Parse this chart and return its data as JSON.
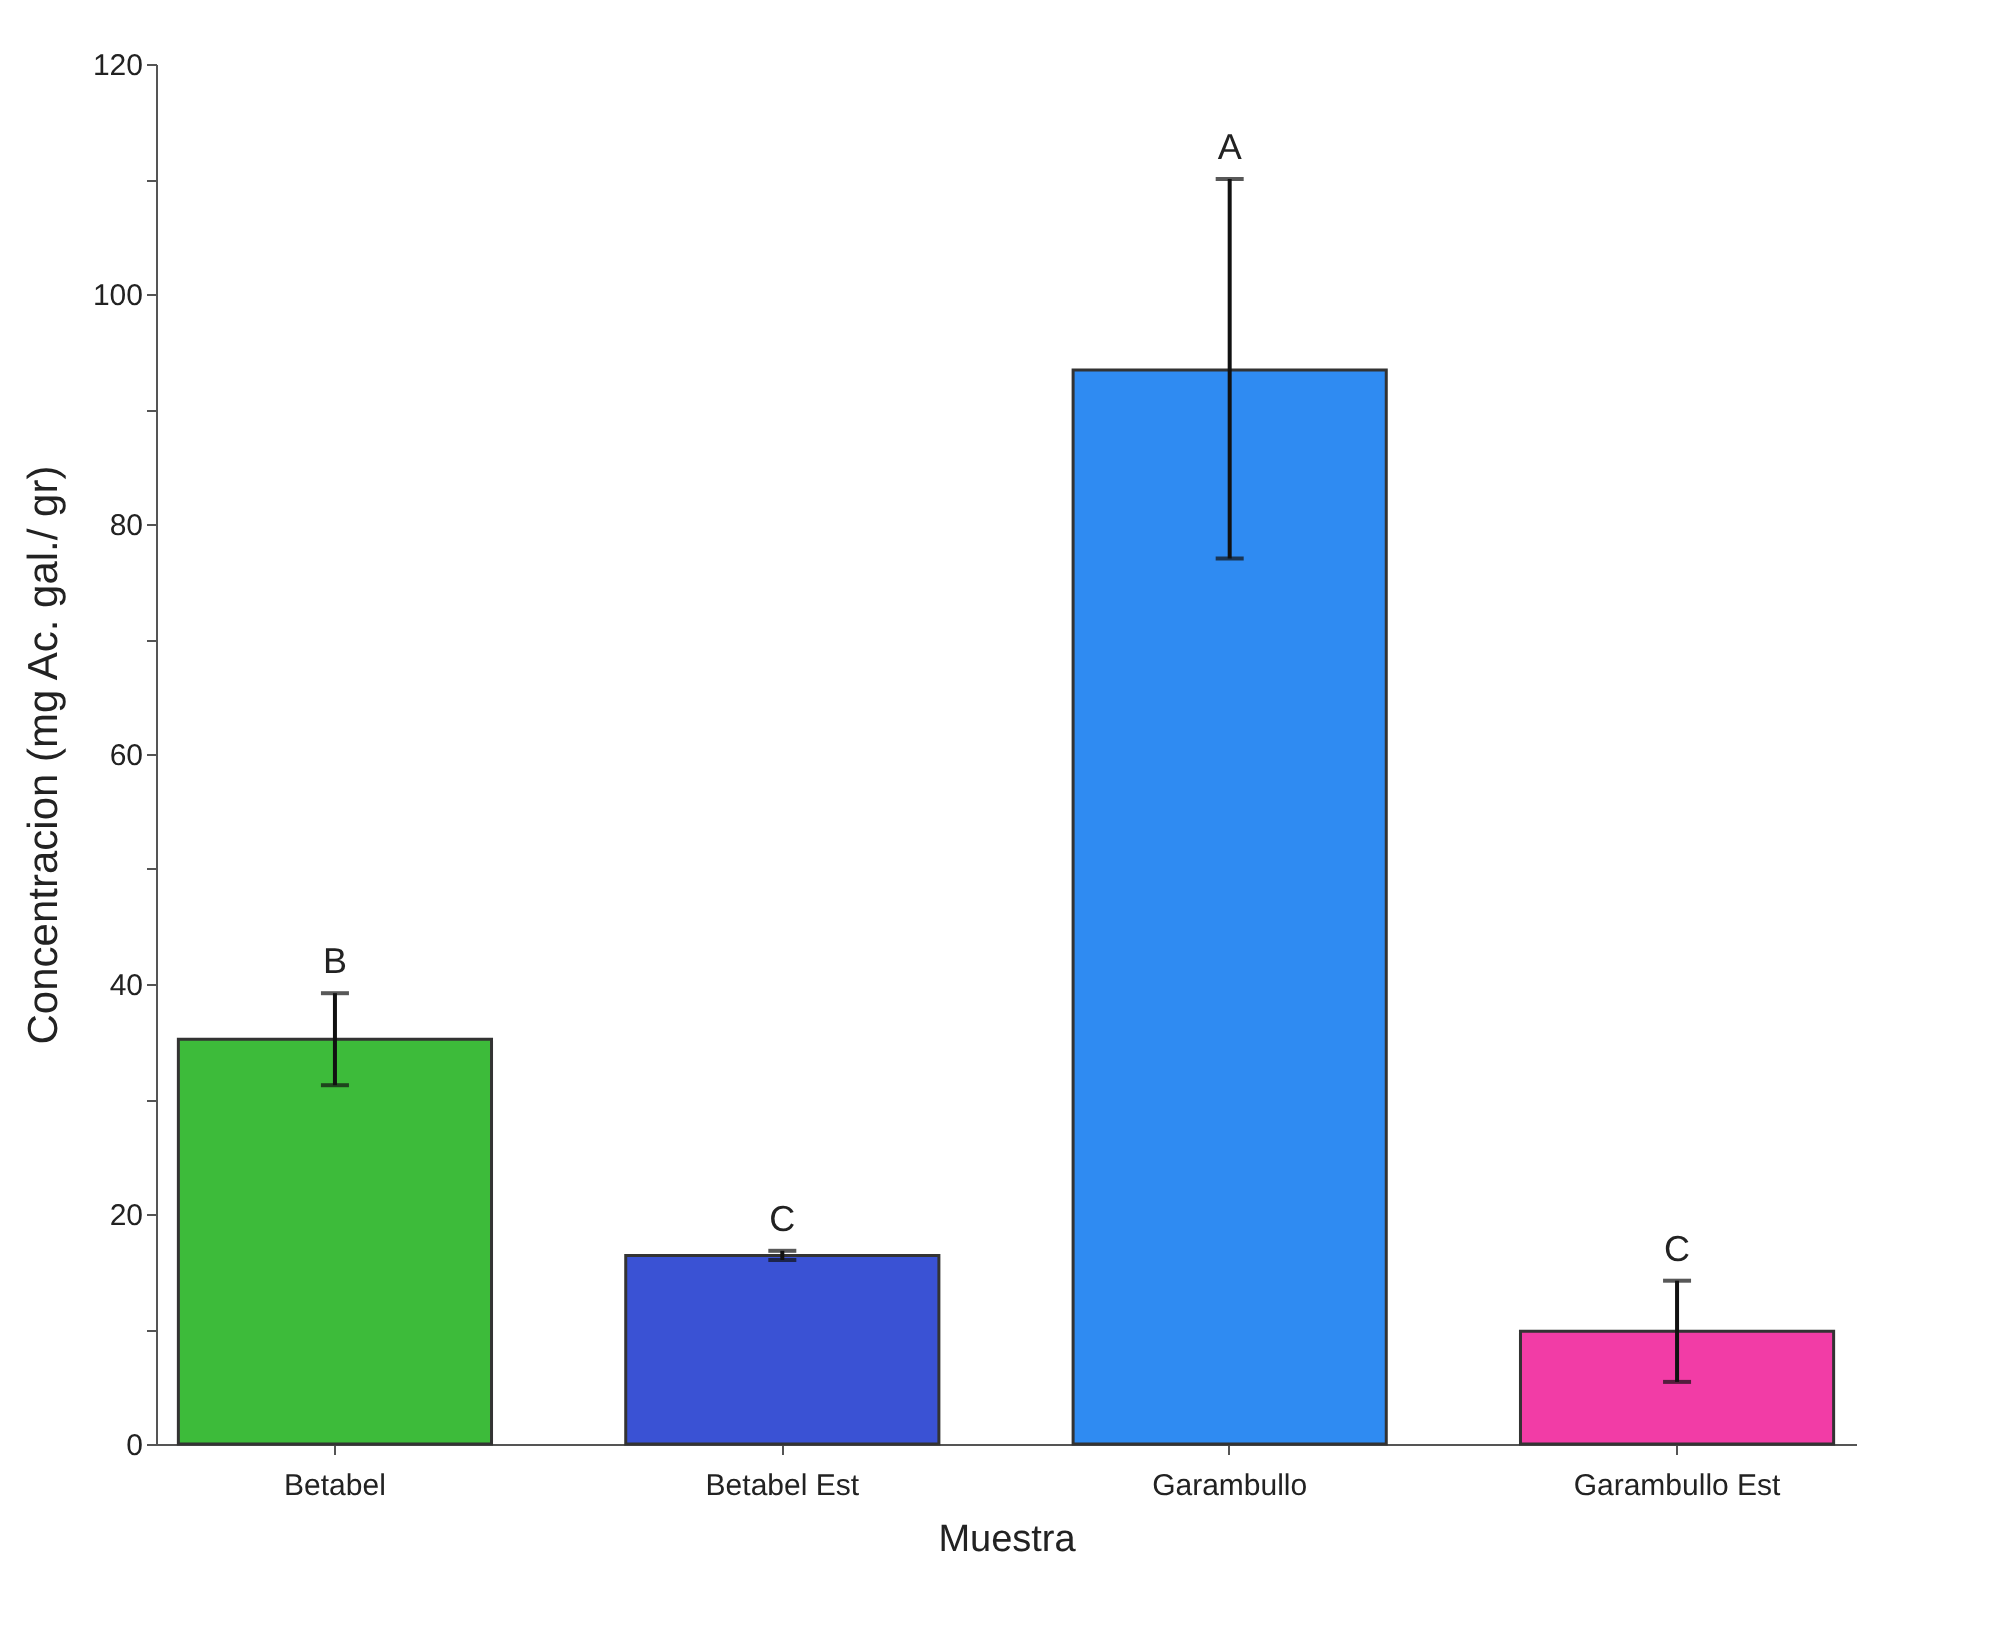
{
  "chart_data": {
    "type": "bar",
    "xlabel": "Muestra",
    "ylabel": "Concentracion (mg Ac. gal./ gr)",
    "categories": [
      "Betabel",
      "Betabel Est",
      "Garambullo",
      "Garambullo Est"
    ],
    "values": [
      35.2,
      16.4,
      93.4,
      9.8
    ],
    "colors": [
      "#3dbb3a",
      "#3a52d4",
      "#2f8bf2",
      "#f23ca6"
    ],
    "errors": [
      4,
      0.4,
      [
        77,
        110
      ],
      4.4
    ],
    "ylim": [
      0,
      120
    ],
    "yticks": [
      0,
      {
        "value": 10,
        "label": null
      },
      20,
      {
        "value": 30,
        "label": null
      },
      40,
      {
        "value": 50,
        "label": null
      },
      60,
      {
        "value": 70,
        "label": null
      },
      80,
      {
        "value": 90,
        "label": null
      },
      100,
      {
        "value": 110,
        "label": null
      },
      120
    ],
    "annotations": [
      {
        "text": "B",
        "x": "Betabel",
        "y": 39.2
      },
      {
        "text": "C",
        "x": "Betabel Est",
        "y": 16.8
      },
      {
        "text": "A",
        "x": "Garambullo",
        "y": 110
      },
      {
        "text": "C",
        "x": "Garambullo Est",
        "y": 14.2
      }
    ],
    "grid": false
  }
}
